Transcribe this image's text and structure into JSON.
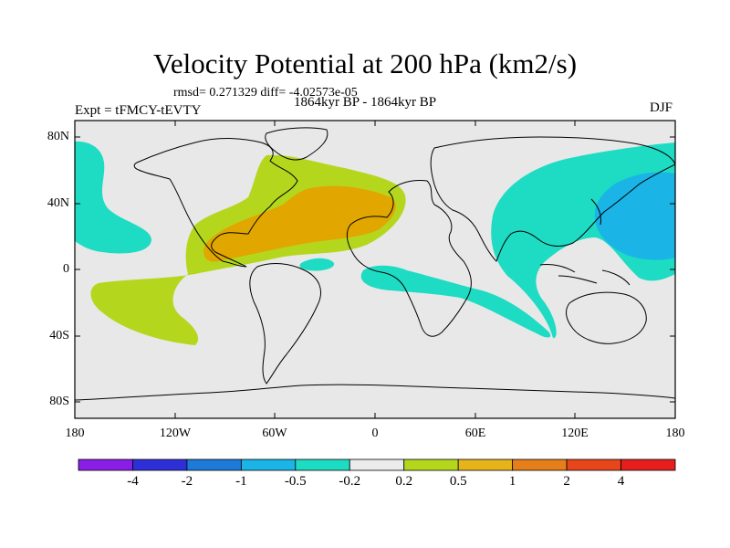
{
  "title": "Velocity Potential at 200 hPa (km2/s)",
  "stats": "rmsd= 0.271329  diff= -4.02573e-05",
  "experiment": "Expt = tFMCY-tEVTY",
  "period": "1864kyr BP - 1864kyr BP",
  "season": "DJF",
  "y_axis_ticks": [
    "80N",
    "40N",
    "0",
    "40S",
    "80S"
  ],
  "x_axis_ticks": [
    "180",
    "120W",
    "60W",
    "0",
    "60E",
    "120E",
    "180"
  ],
  "colorbar": {
    "labels": [
      "-4",
      "-2",
      "-1",
      "-0.5",
      "-0.2",
      "0.2",
      "0.5",
      "1",
      "2",
      "4"
    ],
    "colors": [
      "#8a1ee6",
      "#2f2fd8",
      "#1e7ad8",
      "#1ab4e6",
      "#1edcc3",
      "#ebebeb",
      "#b4d71e",
      "#e6b41a",
      "#e67e1a",
      "#e6461a",
      "#e61e1e"
    ]
  },
  "chart_data": {
    "type": "filled-contour-map",
    "variable": "Velocity Potential at 200 hPa",
    "units": "km2/s",
    "levels": [
      -4,
      -2,
      -1,
      -0.5,
      -0.2,
      0.2,
      0.5,
      1,
      2,
      4
    ],
    "lon_range": [
      -180,
      180
    ],
    "lat_range": [
      -90,
      90
    ],
    "regions": [
      {
        "name": "east-pacific-cyan",
        "level_bin": "-0.5 to -0.2"
      },
      {
        "name": "atlantic-green",
        "level_bin": "0.2 to 0.5"
      },
      {
        "name": "atlantic-orange",
        "level_bin": "0.5 to 1"
      },
      {
        "name": "western-pacific-cyan",
        "level_bin": "-0.5 to -0.2"
      },
      {
        "name": "western-pacific-blue",
        "level_bin": "-1 to -0.5"
      },
      {
        "name": "west-africa-cyan",
        "level_bin": "-0.5 to -0.2"
      },
      {
        "name": "indian-ocean-cyan",
        "level_bin": "-0.5 to -0.2"
      }
    ]
  }
}
